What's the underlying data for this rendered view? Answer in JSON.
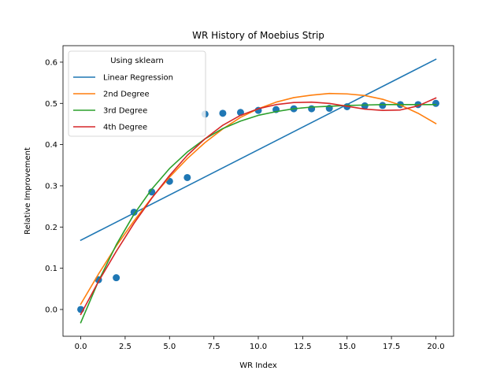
{
  "chart_data": {
    "type": "scatter",
    "title": "WR History of Moebius Strip",
    "xlabel": "WR Index",
    "ylabel": "Relative Improvement",
    "xlim": [
      -1,
      21
    ],
    "ylim": [
      -0.065,
      0.64
    ],
    "xticks": [
      0.0,
      2.5,
      5.0,
      7.5,
      10.0,
      12.5,
      15.0,
      17.5,
      20.0
    ],
    "xtick_labels": [
      "0.0",
      "2.5",
      "5.0",
      "7.5",
      "10.0",
      "12.5",
      "15.0",
      "17.5",
      "20.0"
    ],
    "yticks": [
      0.0,
      0.1,
      0.2,
      0.3,
      0.4,
      0.5,
      0.6
    ],
    "ytick_labels": [
      "0.0",
      "0.1",
      "0.2",
      "0.3",
      "0.4",
      "0.5",
      "0.6"
    ],
    "grid": false,
    "legend": {
      "title": "Using sklearn",
      "placement": "upper-left"
    },
    "points": {
      "color": "#1f77b4",
      "x": [
        0,
        1,
        2,
        3,
        4,
        5,
        6,
        7,
        8,
        9,
        10,
        11,
        12,
        13,
        14,
        15,
        16,
        17,
        18,
        19,
        20
      ],
      "y": [
        0.0,
        0.072,
        0.077,
        0.236,
        0.285,
        0.311,
        0.32,
        0.474,
        0.476,
        0.478,
        0.483,
        0.485,
        0.487,
        0.487,
        0.488,
        0.492,
        0.494,
        0.495,
        0.497,
        0.497,
        0.5
      ]
    },
    "series": [
      {
        "name": "Linear Regression",
        "color": "#1f77b4",
        "x": [
          0,
          20
        ],
        "y": [
          0.168,
          0.607
        ]
      },
      {
        "name": "2nd Degree",
        "color": "#ff7f0e",
        "x": [
          0,
          1,
          2,
          3,
          4,
          5,
          6,
          7,
          8,
          9,
          10,
          11,
          12,
          13,
          14,
          15,
          16,
          17,
          18,
          19,
          20
        ],
        "y": [
          0.013,
          0.086,
          0.154,
          0.215,
          0.271,
          0.321,
          0.366,
          0.405,
          0.438,
          0.466,
          0.487,
          0.503,
          0.514,
          0.52,
          0.524,
          0.523,
          0.519,
          0.51,
          0.496,
          0.476,
          0.451
        ]
      },
      {
        "name": "3rd Degree",
        "color": "#2ca02c",
        "x": [
          0,
          1,
          2,
          3,
          4,
          5,
          6,
          7,
          8,
          9,
          10,
          11,
          12,
          13,
          14,
          15,
          16,
          17,
          18,
          19,
          20
        ],
        "y": [
          -0.032,
          0.069,
          0.157,
          0.231,
          0.292,
          0.342,
          0.382,
          0.414,
          0.439,
          0.457,
          0.471,
          0.48,
          0.487,
          0.491,
          0.493,
          0.495,
          0.496,
          0.497,
          0.497,
          0.497,
          0.497
        ]
      },
      {
        "name": "4th Degree",
        "color": "#d62728",
        "x": [
          0,
          1,
          2,
          3,
          4,
          5,
          6,
          7,
          8,
          9,
          10,
          11,
          12,
          13,
          14,
          15,
          16,
          17,
          18,
          19,
          20
        ],
        "y": [
          -0.012,
          0.068,
          0.141,
          0.209,
          0.27,
          0.325,
          0.374,
          0.414,
          0.447,
          0.471,
          0.487,
          0.497,
          0.502,
          0.503,
          0.5,
          0.493,
          0.486,
          0.483,
          0.484,
          0.494,
          0.513
        ]
      }
    ]
  }
}
